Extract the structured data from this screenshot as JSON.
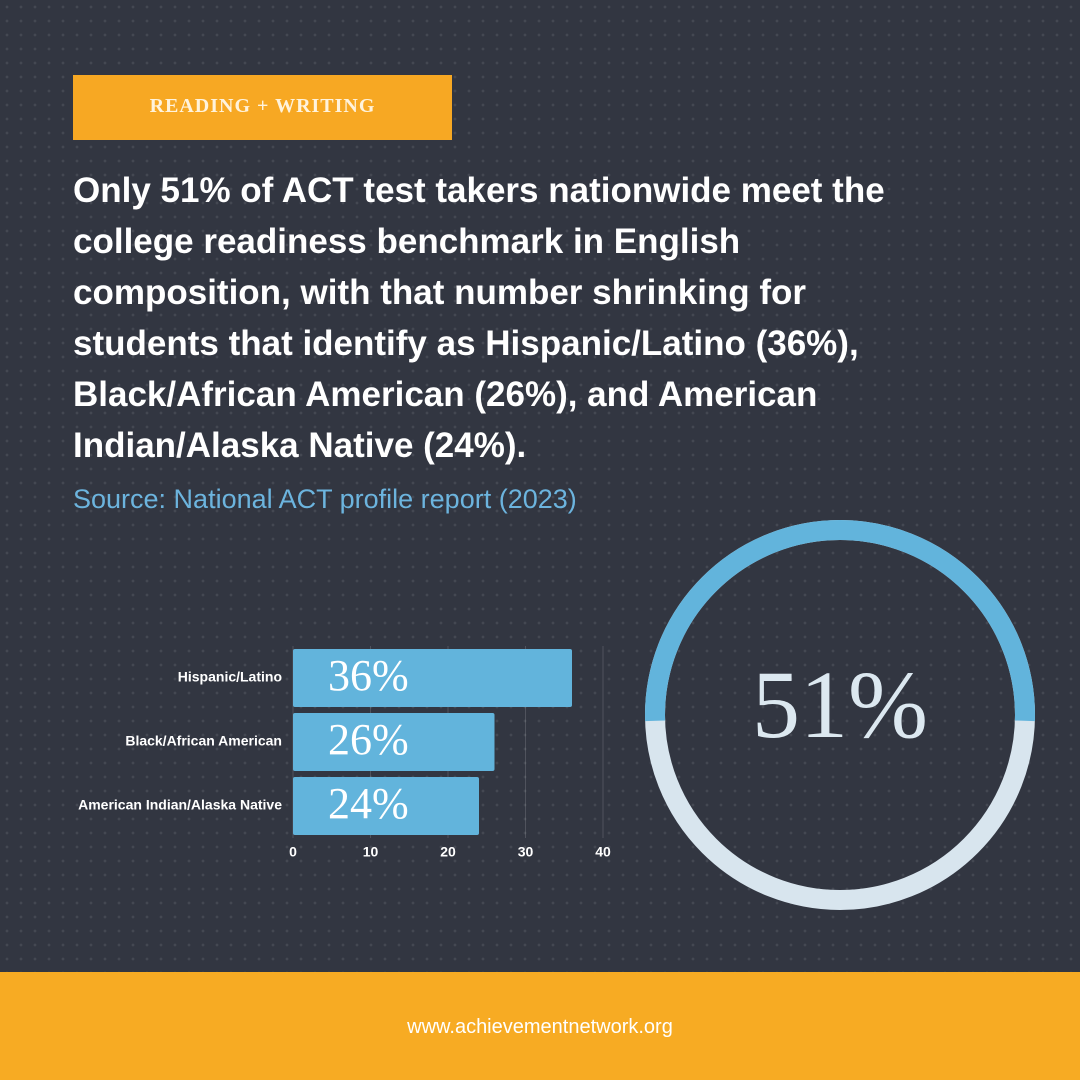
{
  "tag": "READING + WRITING",
  "headline": [
    "Only 51% of ACT test takers nationwide meet the",
    "college readiness benchmark in English",
    "composition, with that number shrinking for",
    "students that identify as Hispanic/Latino (36%),",
    "Black/African American (26%), and American",
    "Indian/Alaska Native (24%)."
  ],
  "source": "Source: National ACT profile report (2023)",
  "footer": "www.achievementnetwork.org",
  "chart_data": [
    {
      "type": "hbar",
      "categories": [
        "Hispanic/Latino",
        "Black/African American",
        "American Indian/Alaska Native"
      ],
      "values": [
        36,
        26,
        24
      ],
      "value_labels": [
        "36%",
        "26%",
        "24%"
      ],
      "color": "#62b4dc",
      "xlim": [
        0,
        40
      ],
      "xticks": [
        0,
        10,
        20,
        30,
        40
      ],
      "grid": true
    },
    {
      "type": "ring",
      "values": [
        51
      ],
      "value_labels": [
        "51%"
      ],
      "color": "#62b4dc",
      "track_color": "#d8e5ee"
    }
  ]
}
